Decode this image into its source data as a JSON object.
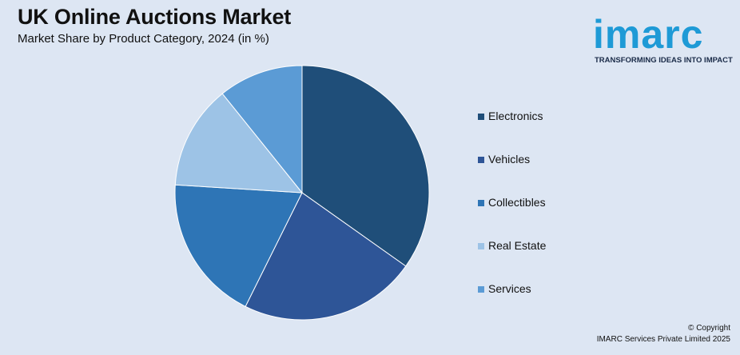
{
  "header": {
    "title": "UK Online Auctions Market",
    "subtitle": "Market Share by Product Category, 2024 (in %)"
  },
  "logo": {
    "wordmark": "imarc",
    "tagline": "TRANSFORMING IDEAS INTO IMPACT"
  },
  "chart_data": {
    "type": "pie",
    "title": "UK Online Auctions Market",
    "subtitle": "Market Share by Product Category, 2024 (in %)",
    "categories": [
      "Electronics",
      "Vehicles",
      "Collectibles",
      "Real Estate",
      "Services"
    ],
    "values": [
      35.5,
      23.0,
      19.0,
      13.5,
      11.0
    ],
    "colors": [
      "#1f4e79",
      "#2e5597",
      "#2e75b6",
      "#9dc3e6",
      "#5b9bd5"
    ],
    "legend_position": "right",
    "start_angle": "12 o'clock",
    "direction": "clockwise"
  },
  "legend": {
    "items": [
      {
        "label": "Electronics",
        "color": "#1f4e79"
      },
      {
        "label": "Vehicles",
        "color": "#2e5597"
      },
      {
        "label": "Collectibles",
        "color": "#2e75b6"
      },
      {
        "label": "Real Estate",
        "color": "#9dc3e6"
      },
      {
        "label": "Services",
        "color": "#5b9bd5"
      }
    ]
  },
  "footer": {
    "copyright_line1": "© Copyright",
    "copyright_line2": "IMARC Services Private Limited 2025"
  }
}
